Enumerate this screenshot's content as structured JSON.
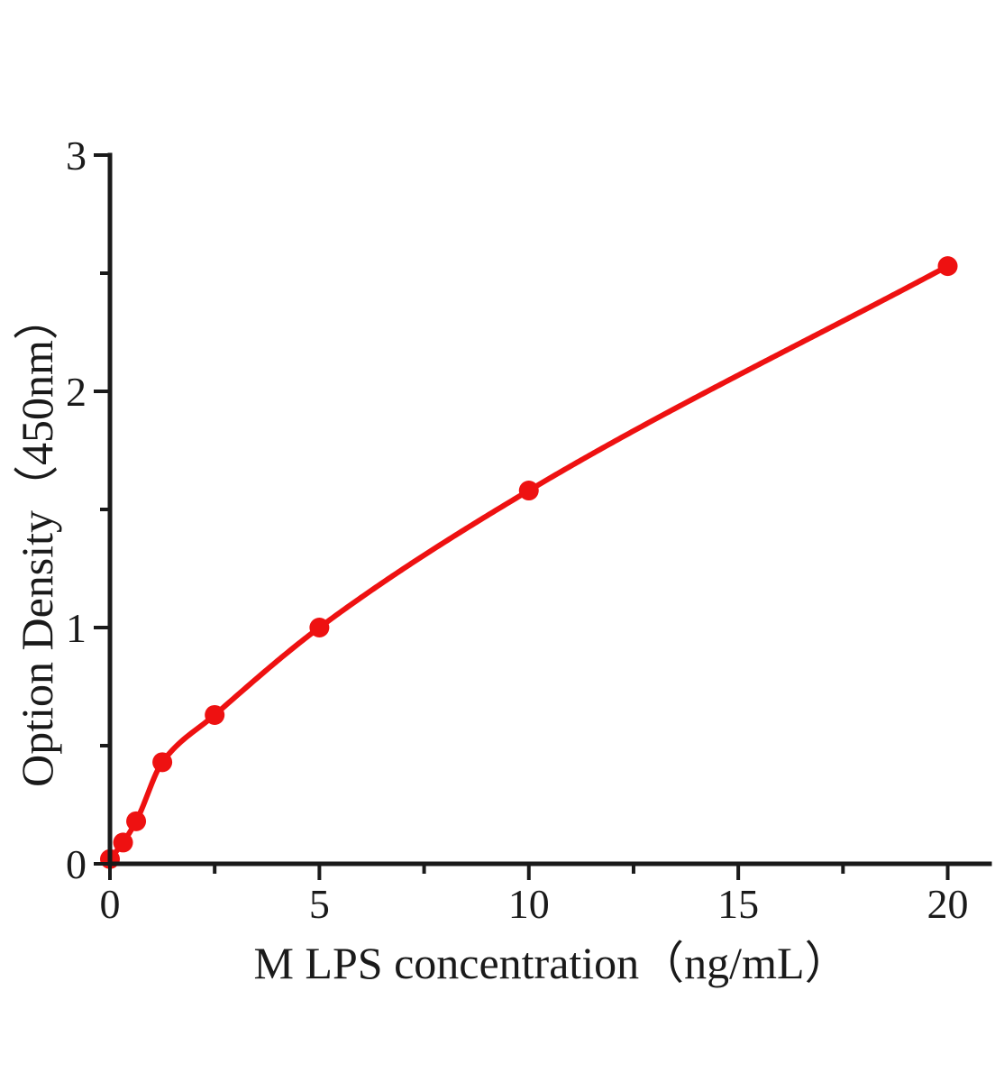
{
  "figure": {
    "background": "#ffffff"
  },
  "chart_data": {
    "type": "scatter",
    "title": "",
    "xlabel": "M LPS concentration（ng/mL）",
    "ylabel": "Option Density（450nm）",
    "x_ticks": [
      0,
      5,
      10,
      15,
      20
    ],
    "x_minor_ticks": [
      2.5,
      7.5,
      12.5,
      17.5
    ],
    "y_ticks": [
      0,
      1,
      2,
      3
    ],
    "y_minor_ticks": [
      0.5,
      1.5,
      2.5
    ],
    "xlim": [
      0,
      21
    ],
    "ylim": [
      0,
      3
    ],
    "points": [
      {
        "x": 0,
        "y": 0.02
      },
      {
        "x": 0.313,
        "y": 0.09
      },
      {
        "x": 0.625,
        "y": 0.18
      },
      {
        "x": 1.25,
        "y": 0.43
      },
      {
        "x": 2.5,
        "y": 0.63
      },
      {
        "x": 5,
        "y": 1.0
      },
      {
        "x": 10,
        "y": 1.58
      },
      {
        "x": 20,
        "y": 2.53
      }
    ],
    "curve_style": "smooth-fit-line",
    "marker": "filled-circle",
    "series_color": "#ee1111",
    "axis_color": "#1a1a1a",
    "grid": false,
    "legend": null
  }
}
